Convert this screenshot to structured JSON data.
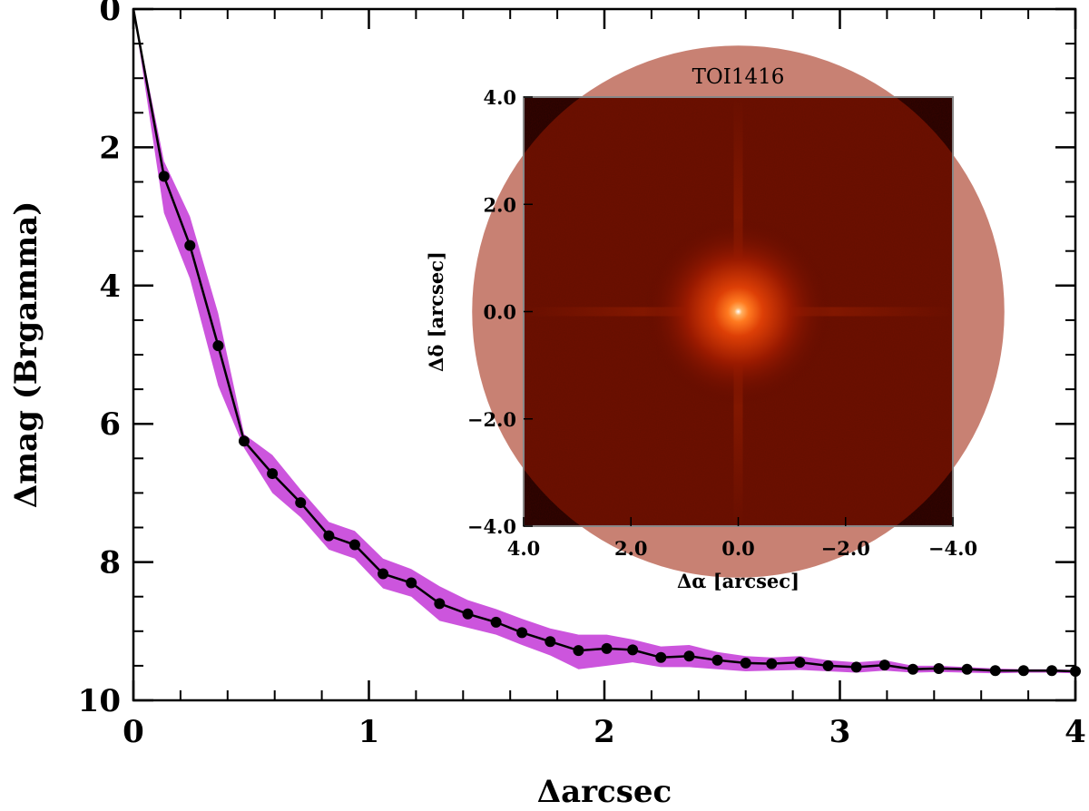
{
  "chart_data": [
    {
      "type": "line",
      "xlabel": "Δarcsec",
      "ylabel": "Δmag (Brgamma)",
      "xlim": [
        0,
        4
      ],
      "ylim": [
        10,
        0
      ],
      "y_inverted": true,
      "xticks": [
        "0",
        "1",
        "2",
        "3",
        "4"
      ],
      "yticks": [
        "0",
        "2",
        "4",
        "6",
        "8",
        "10"
      ],
      "line_color": "#000000",
      "band_color": "#cc55dd",
      "series": [
        {
          "x": [
            0.0,
            0.13,
            0.24,
            0.36,
            0.47,
            0.59,
            0.71,
            0.83,
            0.94,
            1.06,
            1.18,
            1.3,
            1.42,
            1.54,
            1.65,
            1.77,
            1.89,
            2.01,
            2.12,
            2.24,
            2.36,
            2.48,
            2.6,
            2.71,
            2.83,
            2.95,
            3.07,
            3.19,
            3.31,
            3.42,
            3.54,
            3.66,
            3.78,
            3.9,
            4.0
          ],
          "values": [
            0.0,
            2.42,
            3.42,
            4.87,
            6.25,
            6.72,
            7.14,
            7.62,
            7.75,
            8.17,
            8.3,
            8.6,
            8.75,
            8.87,
            9.02,
            9.15,
            9.28,
            9.25,
            9.27,
            9.38,
            9.36,
            9.42,
            9.46,
            9.47,
            9.45,
            9.5,
            9.52,
            9.49,
            9.55,
            9.54,
            9.55,
            9.57,
            9.57,
            9.57,
            9.58
          ],
          "band_lower": [
            0.0,
            2.2,
            3.0,
            4.4,
            6.15,
            6.45,
            6.95,
            7.42,
            7.55,
            7.95,
            8.1,
            8.35,
            8.55,
            8.68,
            8.82,
            8.96,
            9.05,
            9.05,
            9.12,
            9.22,
            9.2,
            9.3,
            9.36,
            9.38,
            9.36,
            9.42,
            9.45,
            9.42,
            9.5,
            9.5,
            9.52,
            9.54,
            9.55,
            9.55,
            9.56
          ],
          "band_upper": [
            0.0,
            2.95,
            3.9,
            5.45,
            6.35,
            7.0,
            7.35,
            7.82,
            7.95,
            8.38,
            8.5,
            8.85,
            8.95,
            9.05,
            9.2,
            9.35,
            9.55,
            9.5,
            9.45,
            9.52,
            9.52,
            9.55,
            9.58,
            9.57,
            9.56,
            9.58,
            9.6,
            9.57,
            9.6,
            9.59,
            9.6,
            9.61,
            9.6,
            9.6,
            9.61
          ]
        }
      ]
    },
    {
      "type": "heatmap",
      "title": "TOI1416",
      "xlabel": "Δα [arcsec]",
      "ylabel": "Δδ [arcsec]",
      "xlim": [
        4.0,
        -4.0
      ],
      "ylim": [
        -4.0,
        4.0
      ],
      "xticks": [
        "4.0",
        "2.0",
        "0.0",
        "−2.0",
        "−4.0"
      ],
      "yticks": [
        "4.0",
        "2.0",
        "0.0",
        "−2.0",
        "−4.0"
      ],
      "peak_position": [
        0.0,
        0.0
      ],
      "colors": [
        "#ffffff",
        "#ffb060",
        "#ff7a20",
        "#dd3f06",
        "#9a1a00",
        "#5e0a00",
        "#3a0400"
      ]
    }
  ]
}
